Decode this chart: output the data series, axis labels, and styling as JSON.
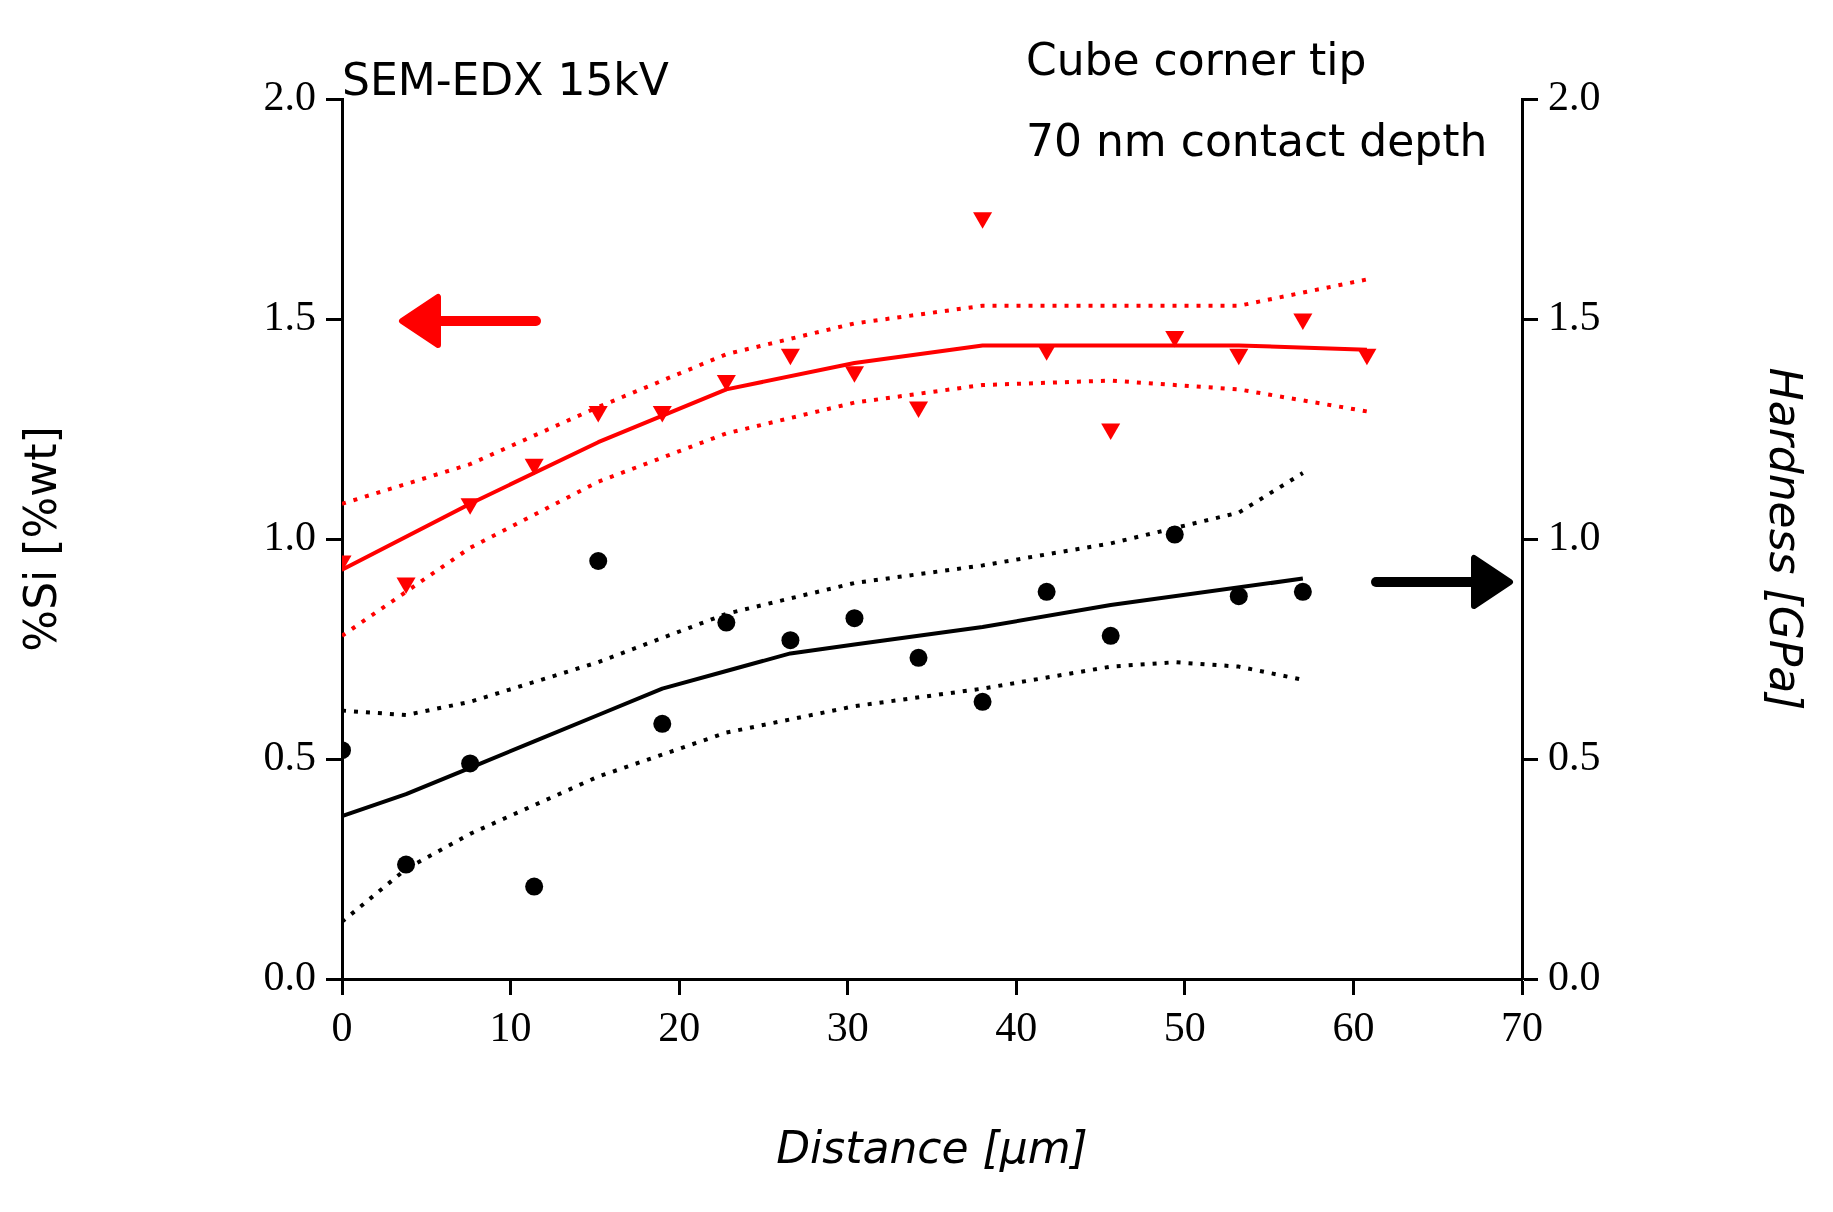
{
  "chart_data": {
    "type": "scatter",
    "xlabel": "Distance [μm]",
    "ylabel": "%Si [%wt]",
    "y2label": "Hardness [GPa]",
    "annotations": [
      "SEM-EDX 15kV",
      "Cube corner tip",
      "70 nm contact depth"
    ],
    "xlim": [
      0,
      70
    ],
    "xticks": [
      0,
      10,
      20,
      30,
      40,
      50,
      60,
      70
    ],
    "ylim": [
      0,
      2
    ],
    "yticks": [
      {
        "value": 0,
        "label": "0.0"
      },
      {
        "value": 0.5,
        "label": "0.5"
      },
      {
        "value": 1,
        "label": "1.0"
      },
      {
        "value": 1.5,
        "label": "1.5"
      },
      {
        "value": 2,
        "label": "2.0"
      }
    ],
    "y2lim": [
      0,
      2
    ],
    "y2ticks": [
      {
        "value": 0,
        "label": "0.0"
      },
      {
        "value": 0.5,
        "label": "0.5"
      },
      {
        "value": 1,
        "label": "1.0"
      },
      {
        "value": 1.5,
        "label": "1.5"
      },
      {
        "value": 2,
        "label": "2.0"
      }
    ],
    "grid": false,
    "legend": false,
    "series": [
      {
        "type": "scatter",
        "color": "#ff0000",
        "marker": "triangle",
        "x": [
          0,
          3.8,
          7.6,
          11.4,
          15.2,
          19,
          22.8,
          26.6,
          30.4,
          34.2,
          38,
          41.8,
          45.6,
          49.4,
          53.2,
          57,
          60.8
        ],
        "values": [
          0.95,
          0.9,
          1.08,
          1.17,
          1.29,
          1.29,
          1.36,
          1.42,
          1.38,
          1.3,
          1.73,
          1.43,
          1.25,
          1.46,
          1.42,
          1.5,
          1.42
        ]
      },
      {
        "type": "line",
        "color": "#ff0000",
        "marker": "none",
        "line_style": "solid",
        "x": [
          0,
          7.6,
          15.2,
          22.8,
          30.4,
          38,
          45.6,
          53.2,
          60.8
        ],
        "values": [
          0.93,
          1.08,
          1.22,
          1.34,
          1.4,
          1.44,
          1.44,
          1.44,
          1.43
        ]
      },
      {
        "type": "line",
        "color": "#ff0000",
        "marker": "none",
        "line_style": "dotted",
        "x": [
          0,
          7.6,
          15.2,
          22.8,
          30.4,
          38,
          45.6,
          53.2,
          60.8
        ],
        "values": [
          1.08,
          1.17,
          1.3,
          1.42,
          1.49,
          1.53,
          1.53,
          1.53,
          1.59
        ]
      },
      {
        "type": "line",
        "color": "#ff0000",
        "marker": "none",
        "line_style": "dotted",
        "x": [
          0,
          7.6,
          15.2,
          22.8,
          30.4,
          38,
          45.6,
          53.2,
          60.8
        ],
        "values": [
          0.78,
          0.98,
          1.13,
          1.24,
          1.31,
          1.35,
          1.36,
          1.34,
          1.29
        ]
      },
      {
        "type": "scatter",
        "axis": "y2",
        "color": "#000000",
        "marker": "circle",
        "x": [
          0,
          3.8,
          7.6,
          11.4,
          15.2,
          19,
          22.8,
          26.6,
          30.4,
          34.2,
          38,
          41.8,
          45.6,
          49.4,
          53.2,
          57
        ],
        "values": [
          0.52,
          0.26,
          0.49,
          0.21,
          0.95,
          0.58,
          0.81,
          0.77,
          0.82,
          0.73,
          0.63,
          0.88,
          0.78,
          1.01,
          0.87,
          0.88
        ]
      },
      {
        "type": "line",
        "axis": "y2",
        "color": "#000000",
        "marker": "none",
        "line_style": "solid",
        "x": [
          0,
          3.8,
          7.6,
          11.4,
          15.2,
          19,
          22.8,
          26.6,
          30.4,
          38,
          45.6,
          57
        ],
        "values": [
          0.37,
          0.42,
          0.48,
          0.54,
          0.6,
          0.66,
          0.7,
          0.74,
          0.76,
          0.8,
          0.85,
          0.91
        ]
      },
      {
        "type": "line",
        "axis": "y2",
        "color": "#000000",
        "marker": "none",
        "line_style": "dotted",
        "x": [
          0,
          3.8,
          7.6,
          15.2,
          22.8,
          30.4,
          38,
          45.6,
          53.2,
          57
        ],
        "values": [
          0.61,
          0.6,
          0.63,
          0.72,
          0.83,
          0.9,
          0.94,
          0.99,
          1.06,
          1.15
        ]
      },
      {
        "type": "line",
        "axis": "y2",
        "color": "#000000",
        "marker": "none",
        "line_style": "dotted",
        "x": [
          0,
          3.8,
          7.6,
          15.2,
          22.8,
          30.4,
          38,
          45.6,
          49.4,
          53.2,
          57
        ],
        "values": [
          0.13,
          0.25,
          0.33,
          0.46,
          0.56,
          0.62,
          0.66,
          0.71,
          0.72,
          0.71,
          0.68
        ]
      }
    ]
  }
}
